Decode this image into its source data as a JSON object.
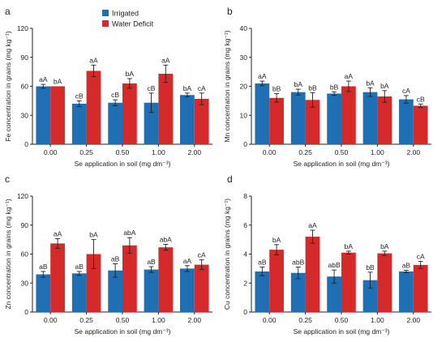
{
  "legend": [
    {
      "label": "Irrigated",
      "color": "#1f6fb4"
    },
    {
      "label": "Water Deficit",
      "color": "#d62a2a"
    }
  ],
  "colors": {
    "irrigated": "#1f6fb4",
    "water_deficit": "#d62a2a",
    "axis": "#222222"
  },
  "chart_data": [
    {
      "panel": "a",
      "type": "bar",
      "xlabel": "Se application in soil (mg dm⁻³)",
      "ylabel": "Fe concentration in grains (mg kg⁻¹)",
      "categories": [
        "0.00",
        "0.25",
        "0.50",
        "1.00",
        "2.00"
      ],
      "ylim": [
        0,
        120
      ],
      "yticks": [
        "0",
        "30",
        "60",
        "90",
        "120"
      ],
      "series": [
        {
          "name": "Irrigated",
          "values": [
            60,
            42,
            43,
            43,
            51
          ],
          "errors": [
            2,
            3,
            3,
            10,
            2
          ],
          "labels": [
            "aA",
            "cB",
            "cB",
            "cB",
            "bA"
          ]
        },
        {
          "name": "Water Deficit",
          "values": [
            60,
            76,
            63,
            73,
            47
          ],
          "errors": [
            0,
            6,
            5,
            9,
            6
          ],
          "labels": [
            "bA",
            "aA",
            "bA",
            "aA",
            "cA"
          ]
        }
      ]
    },
    {
      "panel": "b",
      "type": "bar",
      "xlabel": "Se application in soil (mg dm⁻³)",
      "ylabel": "Mn concentration in grains (mg kg⁻¹)",
      "categories": [
        "0.00",
        "0.25",
        "0.50",
        "1.00",
        "2.00"
      ],
      "ylim": [
        0,
        40
      ],
      "yticks": [
        "0",
        "10",
        "20",
        "30",
        "40"
      ],
      "series": [
        {
          "name": "Irrigated",
          "values": [
            21,
            18,
            17.5,
            18,
            15.5
          ],
          "errors": [
            0.8,
            1,
            0.6,
            1.5,
            1.3
          ],
          "labels": [
            "aA",
            "bA",
            "bB",
            "bA",
            "cA"
          ]
        },
        {
          "name": "Water Deficit",
          "values": [
            16,
            15.3,
            20,
            16.5,
            13.3
          ],
          "errors": [
            1.5,
            2.5,
            1.8,
            2,
            0.6
          ],
          "labels": [
            "bB",
            "bB",
            "aA",
            "bA",
            "cB"
          ]
        }
      ]
    },
    {
      "panel": "c",
      "type": "bar",
      "xlabel": "Se application in soil (mg dm⁻³)",
      "ylabel": "Zn concentration in grains (mg kg⁻¹)",
      "categories": [
        "0.00",
        "0.25",
        "0.50",
        "1.00",
        "2.00"
      ],
      "ylim": [
        0,
        120
      ],
      "yticks": [
        "0",
        "30",
        "60",
        "90",
        "120"
      ],
      "series": [
        {
          "name": "Irrigated",
          "values": [
            39,
            40,
            43,
            44,
            45
          ],
          "errors": [
            3,
            2,
            7,
            3,
            3
          ],
          "labels": [
            "aB",
            "aB",
            "aB",
            "aB",
            "aA"
          ]
        },
        {
          "name": "Water Deficit",
          "values": [
            71,
            60,
            69,
            67,
            49
          ],
          "errors": [
            5,
            15,
            8,
            3,
            5
          ],
          "labels": [
            "aA",
            "bA",
            "abA",
            "abA",
            "cA"
          ]
        }
      ]
    },
    {
      "panel": "d",
      "type": "bar",
      "xlabel": "Se application in soil (mg dm⁻³)",
      "ylabel": "Cu concentration in grains (mg kg⁻¹)",
      "categories": [
        "0.00",
        "0.25",
        "0.50",
        "1.00",
        "2.00"
      ],
      "ylim": [
        0,
        8
      ],
      "yticks": [
        "0",
        "2",
        "4",
        "6",
        "8"
      ],
      "series": [
        {
          "name": "Irrigated",
          "values": [
            2.8,
            2.7,
            2.45,
            2.2,
            2.8
          ],
          "errors": [
            0.3,
            0.4,
            0.45,
            0.55,
            0.08
          ],
          "labels": [
            "aB",
            "abB",
            "abB",
            "bB",
            "aB"
          ]
        },
        {
          "name": "Water Deficit",
          "values": [
            4.3,
            5.2,
            4.1,
            4.05,
            3.25
          ],
          "errors": [
            0.35,
            0.45,
            0.1,
            0.15,
            0.25
          ],
          "labels": [
            "bA",
            "aA",
            "bA",
            "bA",
            "cA"
          ]
        }
      ]
    }
  ]
}
